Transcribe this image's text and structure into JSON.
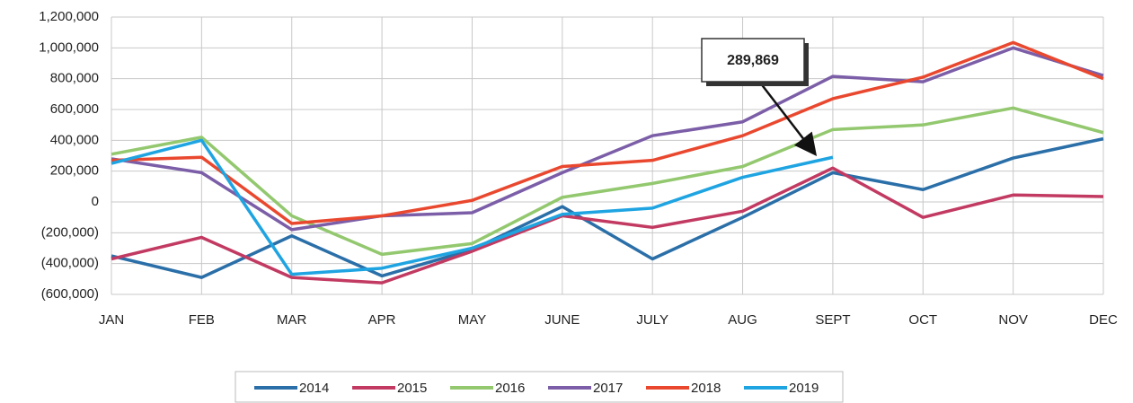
{
  "chart_data": {
    "type": "line",
    "categories": [
      "JAN",
      "FEB",
      "MAR",
      "APR",
      "MAY",
      "JUNE",
      "JULY",
      "AUG",
      "SEPT",
      "OCT",
      "NOV",
      "DEC"
    ],
    "series": [
      {
        "name": "2014",
        "color": "#2b6fa8",
        "values": [
          -350000,
          -490000,
          -220000,
          -480000,
          -310000,
          -30000,
          -370000,
          -100000,
          190000,
          80000,
          285000,
          410000
        ]
      },
      {
        "name": "2015",
        "color": "#c23a62",
        "values": [
          -370000,
          -230000,
          -490000,
          -525000,
          -320000,
          -90000,
          -165000,
          -60000,
          220000,
          -100000,
          45000,
          35000
        ]
      },
      {
        "name": "2016",
        "color": "#93c86f",
        "values": [
          310000,
          420000,
          -90000,
          -340000,
          -270000,
          30000,
          120000,
          230000,
          470000,
          500000,
          610000,
          450000
        ]
      },
      {
        "name": "2017",
        "color": "#7b5ea7",
        "values": [
          280000,
          190000,
          -180000,
          -90000,
          -70000,
          190000,
          430000,
          520000,
          815000,
          780000,
          1000000,
          820000
        ]
      },
      {
        "name": "2018",
        "color": "#e9482f",
        "values": [
          270000,
          290000,
          -140000,
          -90000,
          10000,
          230000,
          270000,
          430000,
          670000,
          810000,
          1035000,
          800000
        ]
      },
      {
        "name": "2019",
        "color": "#1fa4e2",
        "values": [
          250000,
          400000,
          -470000,
          -430000,
          -300000,
          -80000,
          -40000,
          160000,
          289869,
          null,
          null,
          null
        ]
      }
    ],
    "annotation": "289,869",
    "ylim": [
      -600000,
      1200000
    ],
    "yticks": [
      {
        "value": -600000,
        "label": "(600,000)"
      },
      {
        "value": -400000,
        "label": "(400,000)"
      },
      {
        "value": -200000,
        "label": "(200,000)"
      },
      0,
      {
        "value": 200000,
        "label": "200,000"
      },
      {
        "value": 400000,
        "label": "400,000"
      },
      {
        "value": 600000,
        "label": "600,000"
      },
      {
        "value": 800000,
        "label": "800,000"
      },
      {
        "value": 1000000,
        "label": "1,000,000"
      },
      {
        "value": 1200000,
        "label": "1,200,000"
      }
    ],
    "grid": true
  }
}
